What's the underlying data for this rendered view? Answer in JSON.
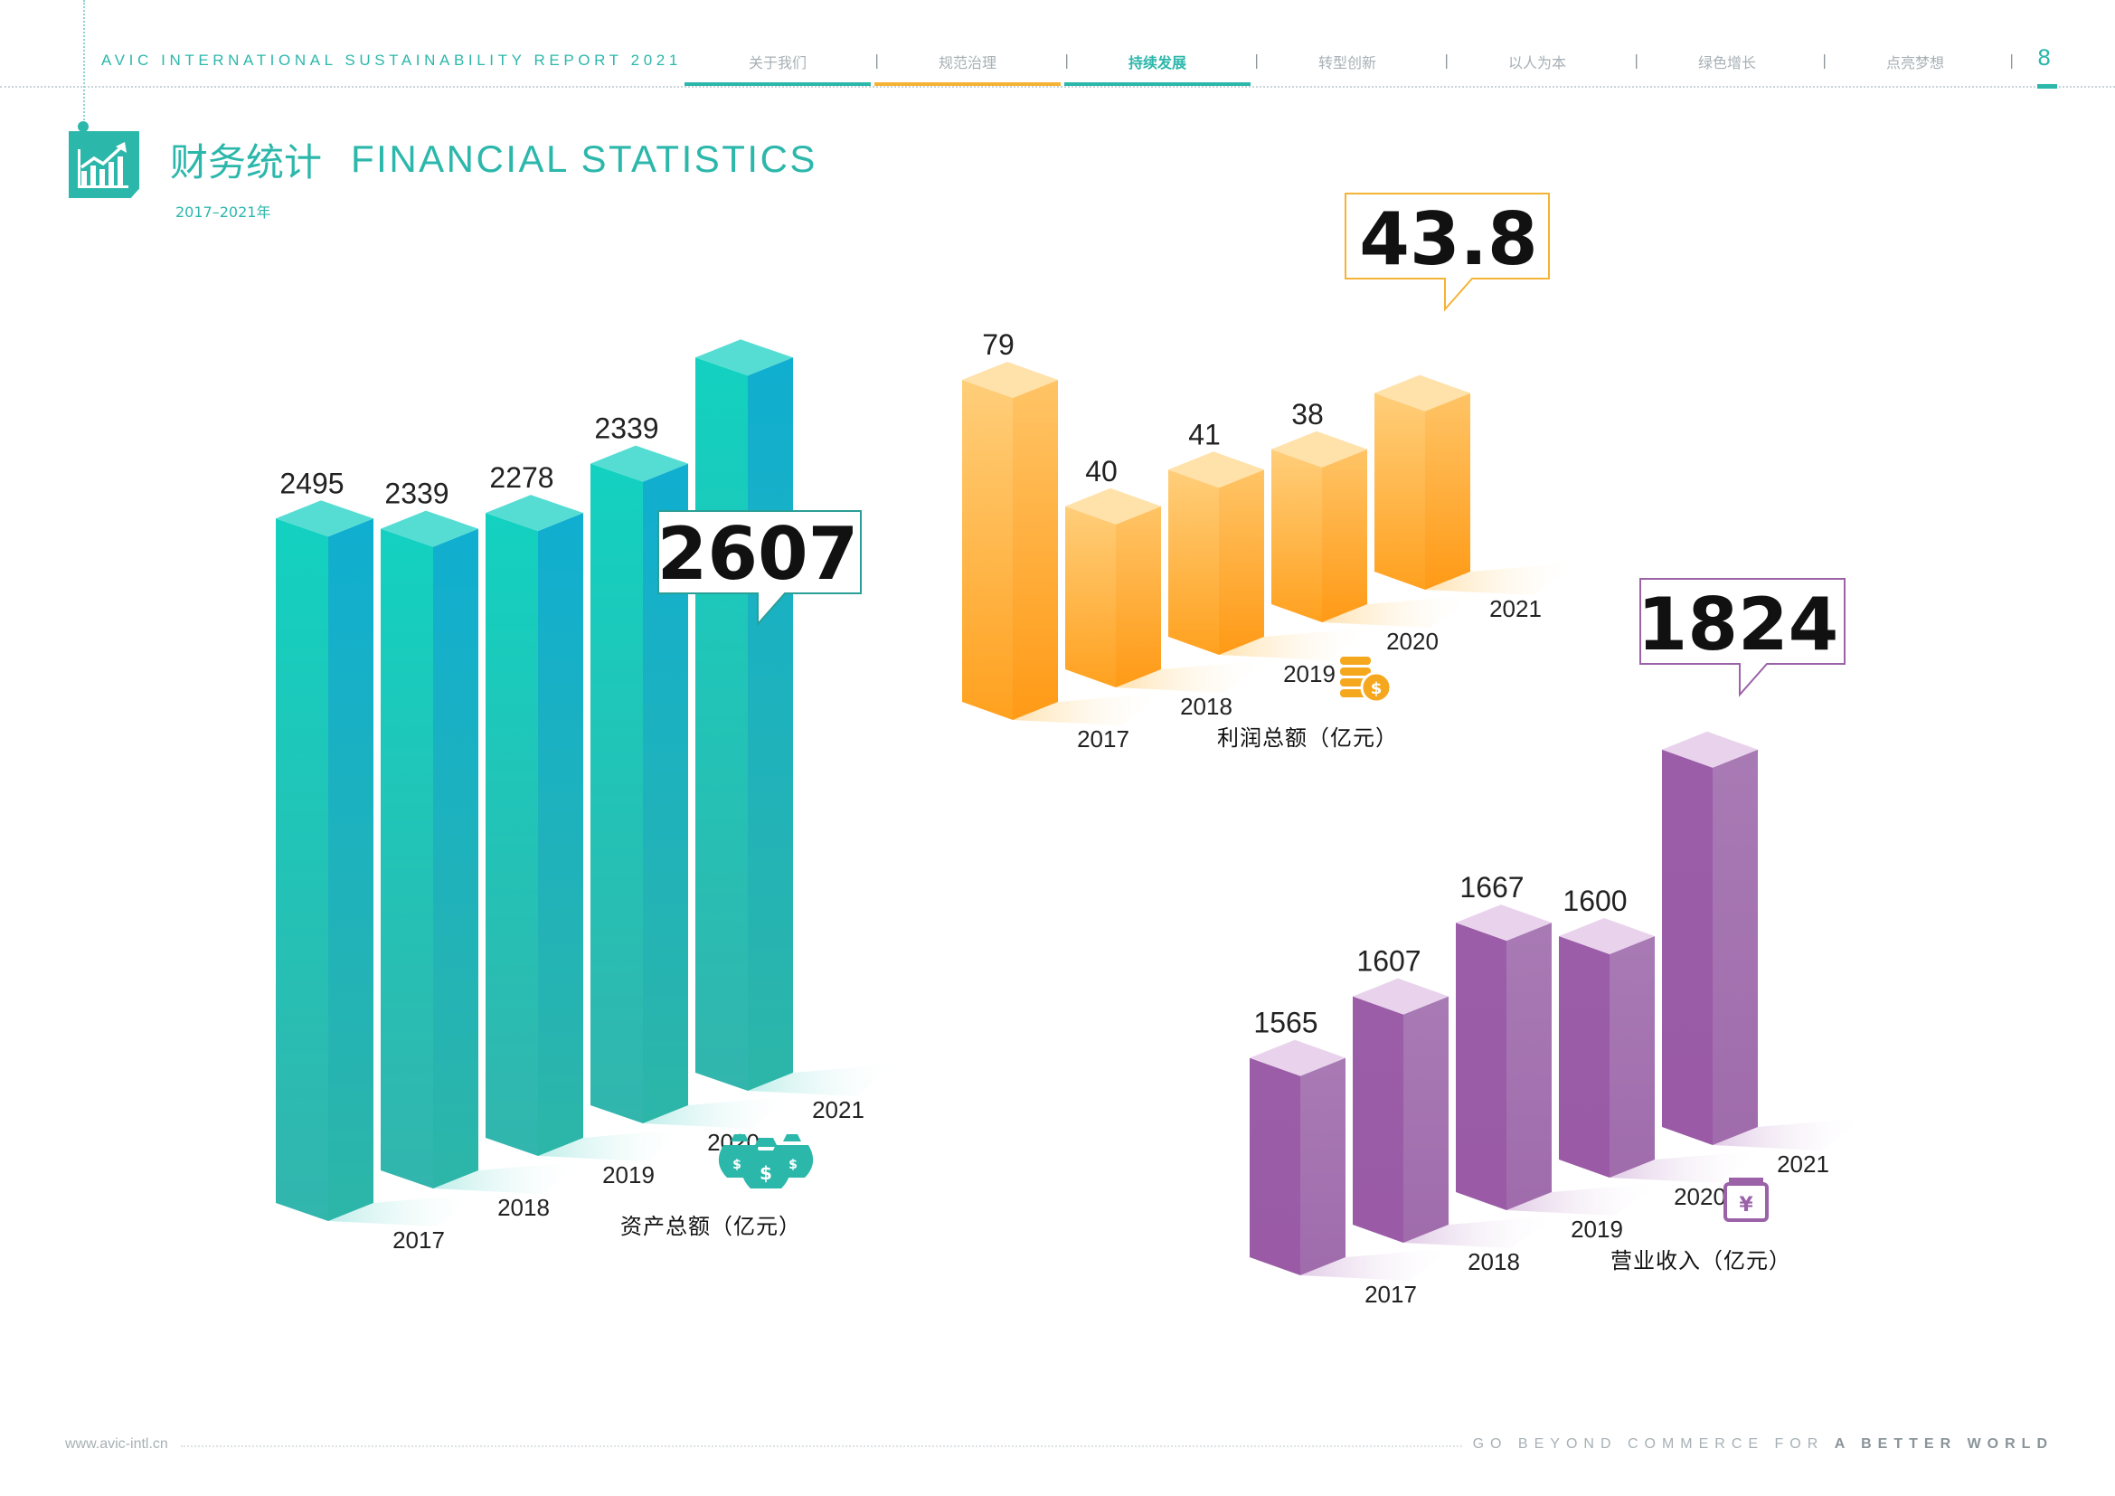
{
  "header": {
    "report_title": "AVIC INTERNATIONAL SUSTAINABILITY  REPORT 2021",
    "page_number": "8",
    "nav_tabs": [
      {
        "label": "关于我们",
        "active": false,
        "underline": ""
      },
      {
        "label": "规范治理",
        "active": false,
        "underline": ""
      },
      {
        "label": "持续发展",
        "active": true,
        "underline": "#2cb7ab"
      },
      {
        "label": "转型创新",
        "active": false,
        "underline": ""
      },
      {
        "label": "以人为本",
        "active": false,
        "underline": ""
      },
      {
        "label": "绿色增长",
        "active": false,
        "underline": ""
      },
      {
        "label": "点亮梦想",
        "active": false,
        "underline": ""
      }
    ],
    "underline_colors": [
      "#2cb7ab",
      "#f5b335",
      "#2cb7ab"
    ]
  },
  "section": {
    "title_cn": "财务统计",
    "title_en": "FINANCIAL STATISTICS",
    "years": "2017–2021年",
    "icon": "bar-chart-trend-icon"
  },
  "footer": {
    "url": "www.avic-intl.cn",
    "slogan_plain": "GO BEYOND COMMERCE FOR ",
    "slogan_bold": "A BETTER WORLD"
  },
  "chart_data": [
    {
      "type": "bar",
      "title": "资产总额（亿元）",
      "categories": [
        "2017",
        "2018",
        "2019",
        "2020",
        "2021"
      ],
      "values": [
        2495,
        2339,
        2278,
        2339,
        2607
      ],
      "highlight_value": "2607",
      "icon": "money-bags-icon",
      "color": "#19cdbf"
    },
    {
      "type": "bar",
      "title": "利润总额（亿元）",
      "categories": [
        "2017",
        "2018",
        "2019",
        "2020",
        "2021"
      ],
      "values": [
        79,
        40,
        41,
        38,
        43.8
      ],
      "highlight_value": "43.8",
      "icon": "coins-icon",
      "color": "#fdb94a"
    },
    {
      "type": "bar",
      "title": "营业收入（亿元）",
      "categories": [
        "2017",
        "2018",
        "2019",
        "2020",
        "2021"
      ],
      "values": [
        1565,
        1607,
        1667,
        1600,
        1824
      ],
      "highlight_value": "1824",
      "icon": "yuan-card-icon",
      "color": "#9b62a8"
    }
  ]
}
